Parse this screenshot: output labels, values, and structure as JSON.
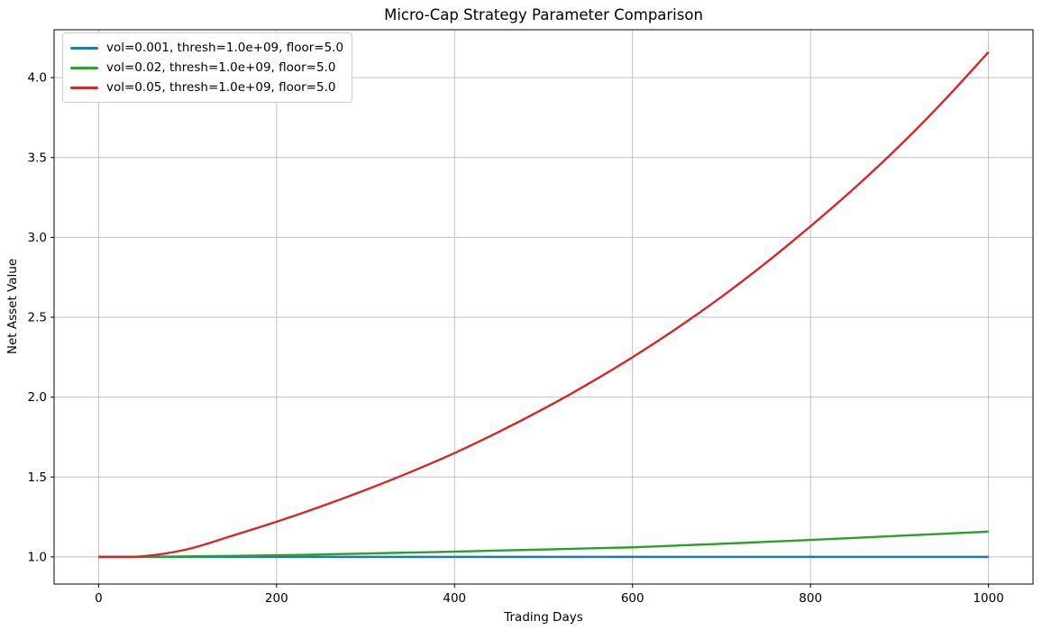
{
  "chart_data": {
    "type": "line",
    "title": "Micro-Cap Strategy Parameter Comparison",
    "xlabel": "Trading Days",
    "ylabel": "Net Asset Value",
    "xlim": [
      -50,
      1050
    ],
    "ylim": [
      0.83,
      4.3
    ],
    "x_ticks": [
      0,
      200,
      400,
      600,
      800,
      1000
    ],
    "y_ticks": [
      1.0,
      1.5,
      2.0,
      2.5,
      3.0,
      3.5,
      4.0
    ],
    "grid": true,
    "grid_color": "#c0c0c0",
    "legend_position": "upper left",
    "x": [
      0,
      50,
      100,
      150,
      200,
      250,
      300,
      350,
      400,
      450,
      500,
      550,
      600,
      650,
      700,
      750,
      800,
      850,
      900,
      950,
      1000
    ],
    "series": [
      {
        "name": "vol=0.001, thresh=1.0e+09, floor=5.0",
        "color": "#1f77b4",
        "values": [
          1.0,
          1.0,
          1.0,
          1.0,
          1.0,
          1.0,
          1.0,
          1.0,
          1.0,
          1.0,
          1.0,
          1.0,
          1.0,
          1.0,
          1.0,
          1.0,
          1.0,
          1.0,
          1.0,
          1.0,
          1.0
        ]
      },
      {
        "name": "vol=0.02, thresh=1.0e+09, floor=5.0",
        "color": "#2ca02c",
        "values": [
          1.0,
          1.001,
          1.003,
          1.006,
          1.01,
          1.015,
          1.021,
          1.027,
          1.033,
          1.04,
          1.046,
          1.053,
          1.06,
          1.071,
          1.082,
          1.094,
          1.106,
          1.119,
          1.132,
          1.145,
          1.158
        ]
      },
      {
        "name": "vol=0.05, thresh=1.0e+09, floor=5.0",
        "color": "#d62728",
        "values": [
          1.0,
          1.004,
          1.048,
          1.132,
          1.22,
          1.316,
          1.419,
          1.53,
          1.65,
          1.783,
          1.927,
          2.082,
          2.25,
          2.432,
          2.628,
          2.841,
          3.07,
          3.312,
          3.573,
          3.856,
          4.16
        ]
      }
    ]
  }
}
